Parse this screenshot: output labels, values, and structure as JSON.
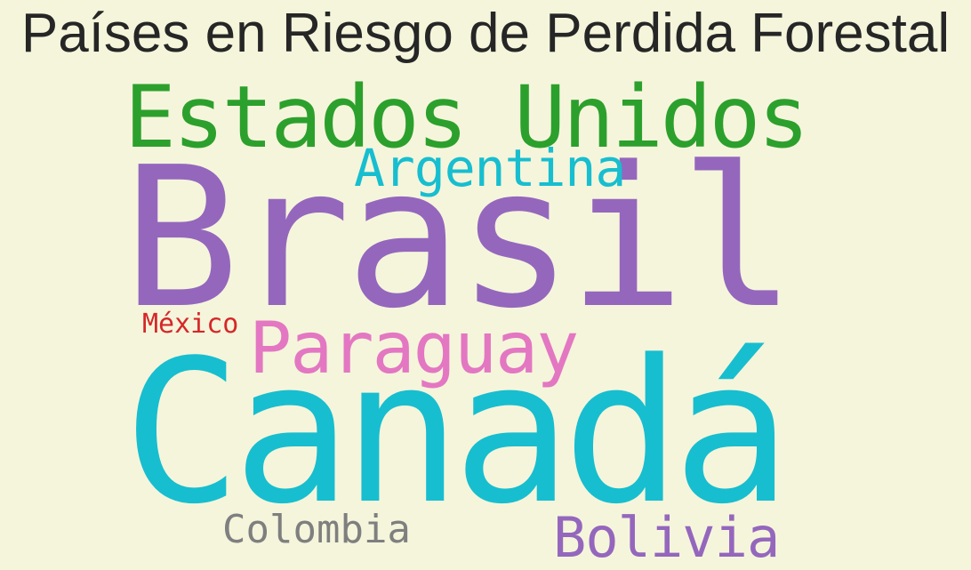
{
  "title": "Países en Riesgo de Perdida Forestal",
  "words": {
    "estados_unidos": {
      "text": "Estados Unidos",
      "color": "#2ca02c"
    },
    "argentina": {
      "text": "Argentina",
      "color": "#17becf"
    },
    "brasil": {
      "text": "Brasil",
      "color": "#9467bd"
    },
    "mexico": {
      "text": "México",
      "color": "#d62728"
    },
    "paraguay": {
      "text": "Paraguay",
      "color": "#e377c2"
    },
    "canada": {
      "text": "Canadá",
      "color": "#17becf"
    },
    "colombia": {
      "text": "Colombia",
      "color": "#7f7f7f"
    },
    "bolivia": {
      "text": "Bolivia",
      "color": "#9467bd"
    }
  },
  "colors": {
    "background": "#f5f5dc",
    "title": "#262626"
  }
}
